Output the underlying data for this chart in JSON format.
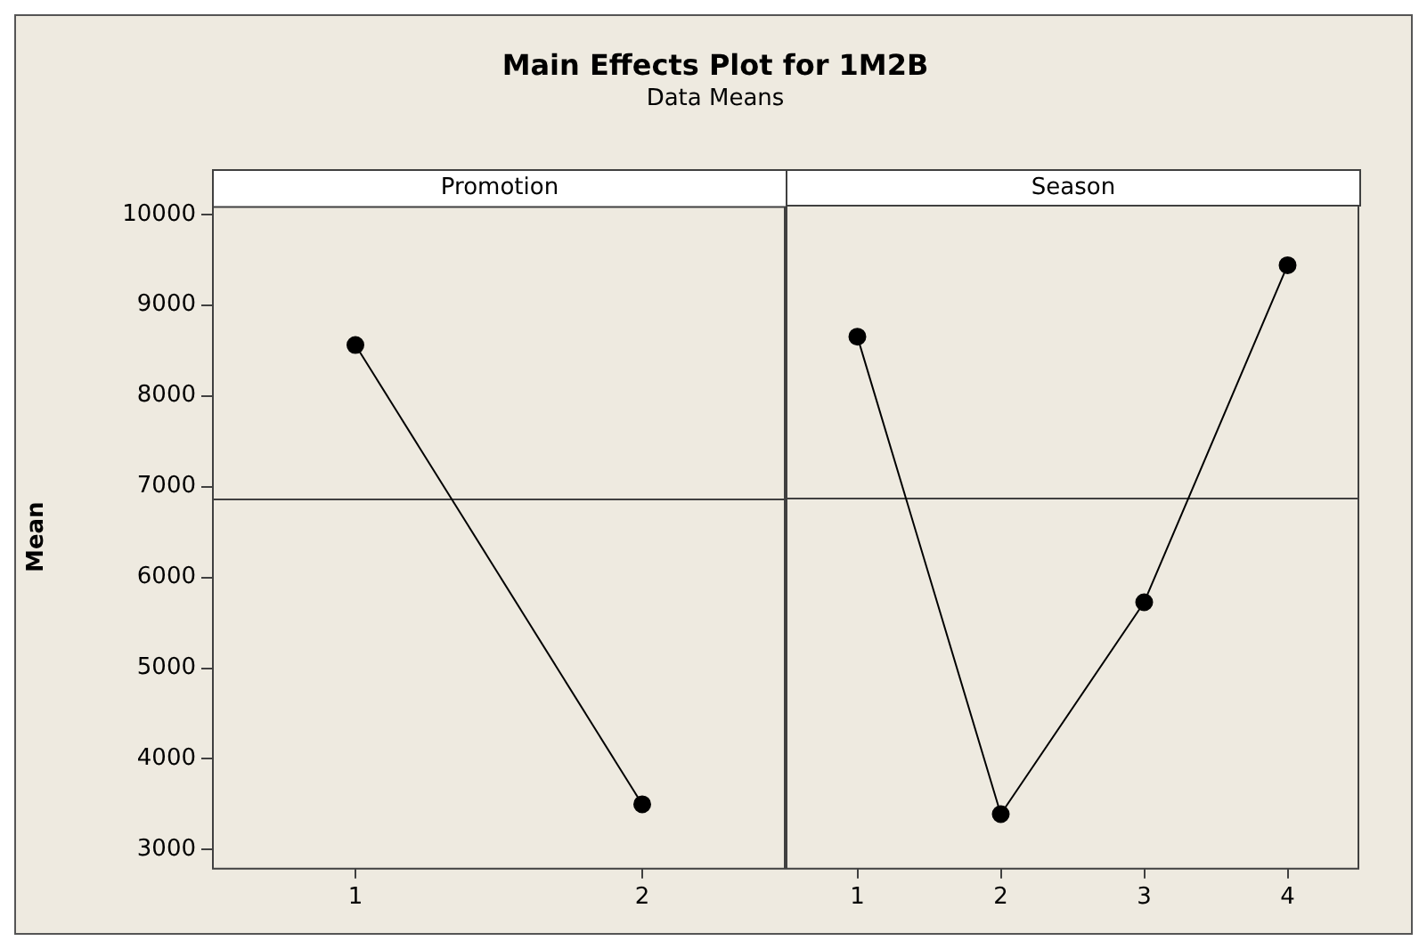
{
  "chart_data": [
    {
      "type": "other",
      "title": "Main Effects Plot for 1M2B",
      "subtitle": "Data Means"
    },
    {
      "type": "line",
      "title": "Promotion",
      "ylabel": "Mean",
      "categories": [
        "1",
        "2"
      ],
      "series": [
        {
          "color": "#000000",
          "values": [
            8560,
            3500
          ]
        }
      ],
      "ylim": [
        2800,
        10090
      ],
      "yticks": [
        3000,
        4000,
        5000,
        6000,
        7000,
        8000,
        9000,
        10000
      ],
      "ref_lines": [
        {
          "axis": "y",
          "value": 6860,
          "color": "#404040"
        }
      ],
      "marker": "circle",
      "grid": false,
      "legend": false
    },
    {
      "type": "line",
      "title": "Season",
      "categories": [
        "1",
        "2",
        "3",
        "4"
      ],
      "series": [
        {
          "color": "#000000",
          "values": [
            8640,
            3390,
            5720,
            9425
          ]
        }
      ],
      "ylim": [
        2800,
        10090
      ],
      "yticks": [
        3000,
        4000,
        5000,
        6000,
        7000,
        8000,
        9000,
        10000
      ],
      "ref_lines": [
        {
          "axis": "y",
          "value": 6860,
          "color": "#404040"
        }
      ],
      "marker": "circle",
      "grid": false,
      "legend": false,
      "tick_labels": "x"
    }
  ]
}
